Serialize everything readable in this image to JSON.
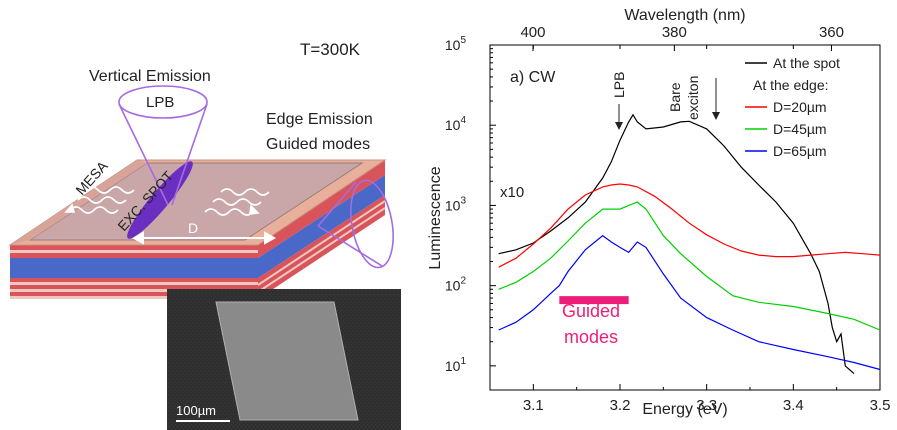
{
  "schematic": {
    "temperature": "T=300K",
    "vertical_emission": "Vertical Emission",
    "lpb": "LPB",
    "edge_emission": "Edge Emission",
    "guided_modes": "Guided modes",
    "mesa": "MESA",
    "exc_spot": "EXC. SPOT",
    "distance": "D",
    "scale_bar": "100µm",
    "colors": {
      "top_layer": "#e8b09a",
      "active_layer": "#4a68c8",
      "mirror_stripe": "#d8545a",
      "spot": "#6a2fc0",
      "cone": "#a66be0"
    }
  },
  "chart_data": {
    "type": "line",
    "panel_label": "a) CW",
    "xlabel": "Energy (eV)",
    "ylabel": "Luminescence",
    "top_xlabel": "Wavelength (nm)",
    "xlim": [
      3.05,
      3.5
    ],
    "ylim": [
      5,
      100000
    ],
    "yscale": "log",
    "x_ticks": [
      "3.1",
      "3.2",
      "3.3",
      "3.4",
      "3.5"
    ],
    "y_ticks": [
      "10^1",
      "10^2",
      "10^3",
      "10^4",
      "10^5"
    ],
    "top_ticks": [
      "400",
      "380",
      "360"
    ],
    "legend_title_2": "At the edge:",
    "legend": [
      {
        "name": "At the spot",
        "color": "#000000"
      },
      {
        "name": "D=20µm",
        "color": "#ff0000"
      },
      {
        "name": "D=45µm",
        "color": "#00d000"
      },
      {
        "name": "D=65µm",
        "color": "#0000ff"
      }
    ],
    "annotations": {
      "lpb": "LPB",
      "bare": "Bare",
      "exciton": "exciton",
      "x10": "x10",
      "guided1": "Guided",
      "guided2": "modes"
    },
    "guided_band": {
      "x0": 3.13,
      "x1": 3.21,
      "y": 66
    },
    "series": [
      {
        "name": "At the spot",
        "color": "#000000",
        "x": [
          3.06,
          3.08,
          3.1,
          3.12,
          3.14,
          3.16,
          3.18,
          3.19,
          3.2,
          3.21,
          3.215,
          3.22,
          3.23,
          3.25,
          3.27,
          3.28,
          3.3,
          3.32,
          3.34,
          3.36,
          3.38,
          3.4,
          3.42,
          3.43,
          3.44,
          3.445,
          3.45,
          3.455,
          3.46,
          3.47
        ],
        "y": [
          250,
          280,
          340,
          480,
          700,
          1100,
          2200,
          3500,
          6500,
          11000,
          13500,
          11000,
          9000,
          9500,
          11000,
          11200,
          9000,
          5500,
          3000,
          1800,
          1100,
          600,
          250,
          150,
          60,
          30,
          20,
          25,
          10,
          8
        ]
      },
      {
        "name": "D=20µm",
        "color": "#ff0000",
        "x": [
          3.06,
          3.08,
          3.1,
          3.12,
          3.14,
          3.16,
          3.18,
          3.19,
          3.2,
          3.21,
          3.22,
          3.24,
          3.26,
          3.28,
          3.3,
          3.32,
          3.34,
          3.36,
          3.38,
          3.4,
          3.42,
          3.44,
          3.46,
          3.48,
          3.5
        ],
        "y": [
          170,
          220,
          330,
          520,
          900,
          1350,
          1700,
          1800,
          1850,
          1800,
          1700,
          1300,
          900,
          600,
          430,
          330,
          270,
          240,
          230,
          230,
          240,
          250,
          260,
          250,
          240
        ]
      },
      {
        "name": "D=45µm",
        "color": "#00d000",
        "x": [
          3.06,
          3.08,
          3.1,
          3.12,
          3.14,
          3.16,
          3.18,
          3.2,
          3.21,
          3.22,
          3.23,
          3.25,
          3.27,
          3.3,
          3.33,
          3.36,
          3.4,
          3.44,
          3.47,
          3.5
        ],
        "y": [
          90,
          110,
          150,
          220,
          360,
          600,
          900,
          900,
          1000,
          1100,
          900,
          420,
          250,
          130,
          75,
          62,
          55,
          45,
          38,
          28
        ]
      },
      {
        "name": "D=65µm",
        "color": "#0000ff",
        "x": [
          3.06,
          3.08,
          3.1,
          3.12,
          3.13,
          3.14,
          3.16,
          3.18,
          3.19,
          3.2,
          3.21,
          3.22,
          3.23,
          3.25,
          3.27,
          3.3,
          3.33,
          3.36,
          3.4,
          3.44,
          3.47,
          3.5
        ],
        "y": [
          28,
          35,
          50,
          80,
          100,
          150,
          280,
          420,
          350,
          300,
          260,
          350,
          300,
          140,
          70,
          40,
          28,
          20,
          16,
          13,
          11,
          9
        ]
      }
    ]
  }
}
